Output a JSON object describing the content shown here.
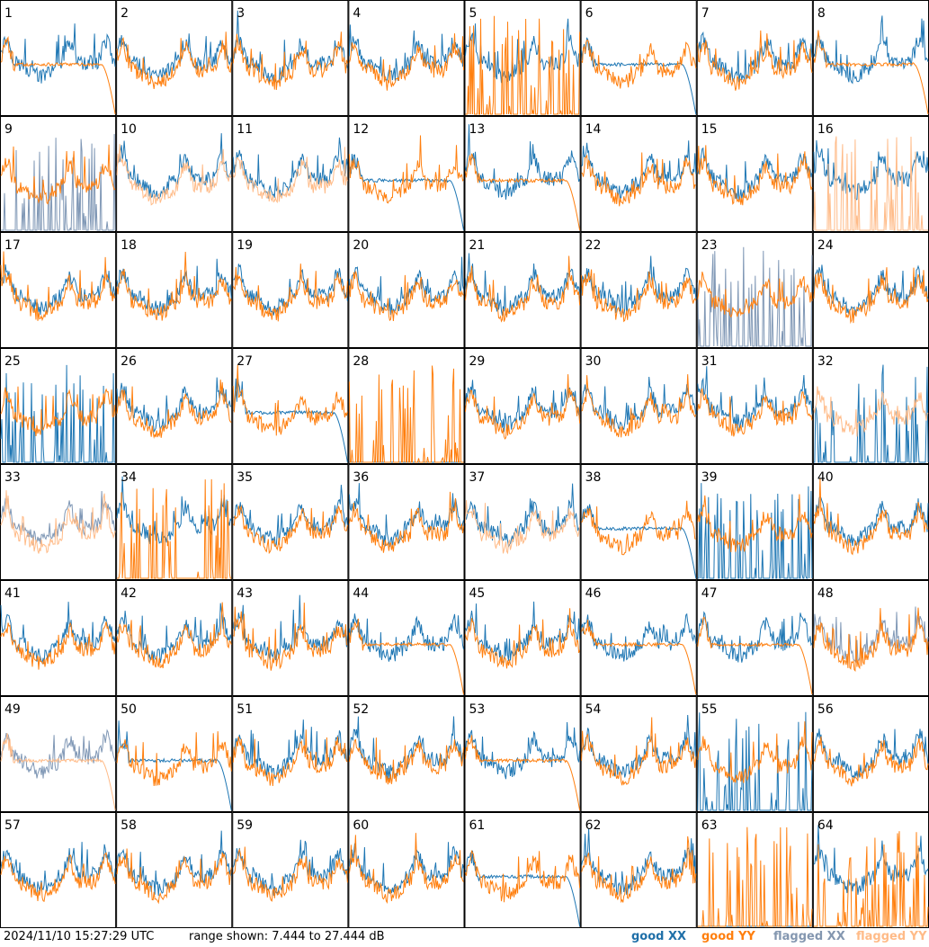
{
  "chart_data": {
    "type": "line",
    "title": "",
    "timestamp": "2024/11/10 15:27:29 UTC",
    "range_text": "range shown: 7.444 to 27.444 dB",
    "ylim": [
      7.444,
      27.444
    ],
    "legend": [
      {
        "label": "good XX",
        "color": "#1f77b4"
      },
      {
        "label": "good YY",
        "color": "#ff7f0e"
      },
      {
        "label": "flagged XX",
        "color": "#7f97b5"
      },
      {
        "label": "flagged YY",
        "color": "#ffbb88"
      }
    ],
    "tiles": [
      {
        "n": "1",
        "xx": "good",
        "yy": "good",
        "xs": "normal",
        "ys": "rolloff"
      },
      {
        "n": "2",
        "xx": "good",
        "yy": "good",
        "xs": "normal",
        "ys": "normal"
      },
      {
        "n": "3",
        "xx": "good",
        "yy": "good",
        "xs": "normal",
        "ys": "normal"
      },
      {
        "n": "4",
        "xx": "good",
        "yy": "good",
        "xs": "normal",
        "ys": "normal"
      },
      {
        "n": "5",
        "xx": "good",
        "yy": "good",
        "xs": "normal",
        "ys": "spikes"
      },
      {
        "n": "6",
        "xx": "good",
        "yy": "good",
        "xs": "rolloff",
        "ys": "normal"
      },
      {
        "n": "7",
        "xx": "good",
        "yy": "good",
        "xs": "normal",
        "ys": "normal"
      },
      {
        "n": "8",
        "xx": "good",
        "yy": "good",
        "xs": "normal",
        "ys": "rolloff"
      },
      {
        "n": "9",
        "xx": "flagged",
        "yy": "good",
        "xs": "spikes",
        "ys": "normal"
      },
      {
        "n": "10",
        "xx": "good",
        "yy": "flagged",
        "xs": "normal",
        "ys": "normal"
      },
      {
        "n": "11",
        "xx": "good",
        "yy": "flagged",
        "xs": "normal",
        "ys": "normal"
      },
      {
        "n": "12",
        "xx": "good",
        "yy": "good",
        "xs": "rolloff",
        "ys": "normal"
      },
      {
        "n": "13",
        "xx": "good",
        "yy": "good",
        "xs": "normal",
        "ys": "rolloff"
      },
      {
        "n": "14",
        "xx": "good",
        "yy": "good",
        "xs": "normal",
        "ys": "normal"
      },
      {
        "n": "15",
        "xx": "good",
        "yy": "good",
        "xs": "normal",
        "ys": "normal"
      },
      {
        "n": "16",
        "xx": "good",
        "yy": "flagged",
        "xs": "normal",
        "ys": "spikes"
      },
      {
        "n": "17",
        "xx": "good",
        "yy": "good",
        "xs": "normal",
        "ys": "normal"
      },
      {
        "n": "18",
        "xx": "good",
        "yy": "good",
        "xs": "normal",
        "ys": "normal"
      },
      {
        "n": "19",
        "xx": "good",
        "yy": "good",
        "xs": "normal",
        "ys": "normal"
      },
      {
        "n": "20",
        "xx": "good",
        "yy": "good",
        "xs": "normal",
        "ys": "normal"
      },
      {
        "n": "21",
        "xx": "good",
        "yy": "good",
        "xs": "normal",
        "ys": "normal"
      },
      {
        "n": "22",
        "xx": "good",
        "yy": "good",
        "xs": "normal",
        "ys": "normal"
      },
      {
        "n": "23",
        "xx": "flagged",
        "yy": "good",
        "xs": "spikes",
        "ys": "normal"
      },
      {
        "n": "24",
        "xx": "good",
        "yy": "good",
        "xs": "normal",
        "ys": "normal"
      },
      {
        "n": "25",
        "xx": "good",
        "yy": "good",
        "xs": "spikes",
        "ys": "normal"
      },
      {
        "n": "26",
        "xx": "good",
        "yy": "good",
        "xs": "normal",
        "ys": "normal"
      },
      {
        "n": "27",
        "xx": "good",
        "yy": "good",
        "xs": "rolloff",
        "ys": "normal"
      },
      {
        "n": "28",
        "xx": "good",
        "yy": "good",
        "xs": "none",
        "ys": "spikes"
      },
      {
        "n": "29",
        "xx": "good",
        "yy": "good",
        "xs": "normal",
        "ys": "normal"
      },
      {
        "n": "30",
        "xx": "good",
        "yy": "good",
        "xs": "normal",
        "ys": "normal"
      },
      {
        "n": "31",
        "xx": "good",
        "yy": "good",
        "xs": "normal",
        "ys": "normal"
      },
      {
        "n": "32",
        "xx": "good",
        "yy": "flagged",
        "xs": "spikes",
        "ys": "normal"
      },
      {
        "n": "33",
        "xx": "flagged",
        "yy": "flagged",
        "xs": "normal",
        "ys": "normal"
      },
      {
        "n": "34",
        "xx": "good",
        "yy": "good",
        "xs": "normal",
        "ys": "spikes"
      },
      {
        "n": "35",
        "xx": "good",
        "yy": "good",
        "xs": "normal",
        "ys": "normal"
      },
      {
        "n": "36",
        "xx": "good",
        "yy": "good",
        "xs": "normal",
        "ys": "normal"
      },
      {
        "n": "37",
        "xx": "good",
        "yy": "flagged",
        "xs": "normal",
        "ys": "normal"
      },
      {
        "n": "38",
        "xx": "good",
        "yy": "good",
        "xs": "rolloff",
        "ys": "normal"
      },
      {
        "n": "39",
        "xx": "good",
        "yy": "good",
        "xs": "spikes",
        "ys": "normal"
      },
      {
        "n": "40",
        "xx": "good",
        "yy": "good",
        "xs": "normal",
        "ys": "normal"
      },
      {
        "n": "41",
        "xx": "good",
        "yy": "good",
        "xs": "normal",
        "ys": "normal"
      },
      {
        "n": "42",
        "xx": "good",
        "yy": "good",
        "xs": "normal",
        "ys": "normal"
      },
      {
        "n": "43",
        "xx": "good",
        "yy": "good",
        "xs": "normal",
        "ys": "normal"
      },
      {
        "n": "44",
        "xx": "good",
        "yy": "good",
        "xs": "normal",
        "ys": "rolloff"
      },
      {
        "n": "45",
        "xx": "good",
        "yy": "good",
        "xs": "normal",
        "ys": "normal"
      },
      {
        "n": "46",
        "xx": "good",
        "yy": "good",
        "xs": "normal",
        "ys": "rolloff"
      },
      {
        "n": "47",
        "xx": "good",
        "yy": "good",
        "xs": "normal",
        "ys": "rolloff"
      },
      {
        "n": "48",
        "xx": "flagged",
        "yy": "good",
        "xs": "normal",
        "ys": "normal"
      },
      {
        "n": "49",
        "xx": "flagged",
        "yy": "flagged",
        "xs": "normal",
        "ys": "rolloff"
      },
      {
        "n": "50",
        "xx": "good",
        "yy": "good",
        "xs": "rolloff",
        "ys": "normal"
      },
      {
        "n": "51",
        "xx": "good",
        "yy": "good",
        "xs": "normal",
        "ys": "normal"
      },
      {
        "n": "52",
        "xx": "good",
        "yy": "good",
        "xs": "normal",
        "ys": "normal"
      },
      {
        "n": "53",
        "xx": "good",
        "yy": "good",
        "xs": "normal",
        "ys": "rolloff"
      },
      {
        "n": "54",
        "xx": "good",
        "yy": "good",
        "xs": "normal",
        "ys": "normal"
      },
      {
        "n": "55",
        "xx": "good",
        "yy": "good",
        "xs": "spikes",
        "ys": "normal"
      },
      {
        "n": "56",
        "xx": "good",
        "yy": "good",
        "xs": "normal",
        "ys": "normal"
      },
      {
        "n": "57",
        "xx": "good",
        "yy": "good",
        "xs": "normal",
        "ys": "normal"
      },
      {
        "n": "58",
        "xx": "good",
        "yy": "good",
        "xs": "normal",
        "ys": "normal"
      },
      {
        "n": "59",
        "xx": "good",
        "yy": "good",
        "xs": "normal",
        "ys": "normal"
      },
      {
        "n": "60",
        "xx": "good",
        "yy": "good",
        "xs": "normal",
        "ys": "normal"
      },
      {
        "n": "61",
        "xx": "good",
        "yy": "good",
        "xs": "rolloff",
        "ys": "normal"
      },
      {
        "n": "62",
        "xx": "good",
        "yy": "good",
        "xs": "normal",
        "ys": "normal"
      },
      {
        "n": "63",
        "xx": "good",
        "yy": "good",
        "xs": "none",
        "ys": "spikes"
      },
      {
        "n": "64",
        "xx": "good",
        "yy": "good",
        "xs": "normal",
        "ys": "spikes"
      }
    ]
  }
}
